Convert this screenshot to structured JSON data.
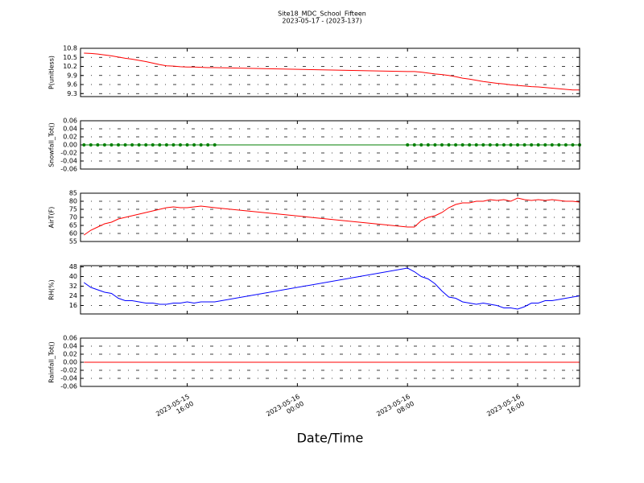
{
  "chart_data": {
    "type": "line",
    "title": "Site18_MDC_School_Fifteen",
    "subtitle": "2023-05-17 - (2023-137)",
    "x_label": "Date/Time",
    "grid": true,
    "xlim": [
      "2023-05-15 08:15",
      "2023-05-16 20:30"
    ],
    "xticks": [
      {
        "value": "2023-05-15 16:00",
        "label": "2023-05-15\n16:00"
      },
      {
        "value": "2023-05-16 00:00",
        "label": "2023-05-16\n00:00"
      },
      {
        "value": "2023-05-16 08:00",
        "label": "2023-05-16\n08:00"
      },
      {
        "value": "2023-05-16 16:00",
        "label": "2023-05-16\n16:00"
      }
    ],
    "x": [
      "2023-05-15 08:30",
      "2023-05-15 09:00",
      "2023-05-15 09:30",
      "2023-05-15 10:00",
      "2023-05-15 10:30",
      "2023-05-15 11:00",
      "2023-05-15 11:30",
      "2023-05-15 12:00",
      "2023-05-15 12:30",
      "2023-05-15 13:00",
      "2023-05-15 13:30",
      "2023-05-15 14:00",
      "2023-05-15 14:30",
      "2023-05-15 15:00",
      "2023-05-15 15:30",
      "2023-05-15 16:00",
      "2023-05-15 16:30",
      "2023-05-15 17:00",
      "2023-05-15 17:30",
      "2023-05-15 18:00",
      "2023-05-16 08:00",
      "2023-05-16 08:30",
      "2023-05-16 09:00",
      "2023-05-16 09:30",
      "2023-05-16 10:00",
      "2023-05-16 10:30",
      "2023-05-16 11:00",
      "2023-05-16 11:30",
      "2023-05-16 12:00",
      "2023-05-16 12:30",
      "2023-05-16 13:00",
      "2023-05-16 13:30",
      "2023-05-16 14:00",
      "2023-05-16 14:30",
      "2023-05-16 15:00",
      "2023-05-16 15:30",
      "2023-05-16 16:00",
      "2023-05-16 16:30",
      "2023-05-16 17:00",
      "2023-05-16 17:30",
      "2023-05-16 18:00",
      "2023-05-16 18:30",
      "2023-05-16 19:00",
      "2023-05-16 19:30",
      "2023-05-16 20:00",
      "2023-05-16 20:30"
    ],
    "panels": [
      {
        "y_label": "P(unitless)",
        "ylim": [
          9.2,
          10.8
        ],
        "yticks": [
          9.3,
          9.6,
          9.9,
          10.2,
          10.5,
          10.8
        ],
        "series": [
          {
            "color": "#ff0000",
            "markers": false,
            "values": [
              10.64,
              10.63,
              10.61,
              10.58,
              10.55,
              10.51,
              10.47,
              10.44,
              10.4,
              10.36,
              10.31,
              10.26,
              10.22,
              10.21,
              10.19,
              10.18,
              10.18,
              10.17,
              10.16,
              10.16,
              10.03,
              10.03,
              10.01,
              9.98,
              9.95,
              9.93,
              9.9,
              9.86,
              9.81,
              9.78,
              9.74,
              9.7,
              9.67,
              9.64,
              9.62,
              9.59,
              9.57,
              9.55,
              9.53,
              9.52,
              9.5,
              9.48,
              9.46,
              9.44,
              9.42,
              9.42
            ]
          }
        ]
      },
      {
        "y_label": "Snowfall_Tot()",
        "ylim": [
          -0.06,
          0.06
        ],
        "yticks": [
          -0.06,
          -0.04,
          -0.02,
          {
            "value": 0,
            "label": "0.00"
          },
          0.02,
          0.04,
          0.06
        ],
        "series": [
          {
            "color": "#007f00",
            "markers": true,
            "values": [
              0,
              0,
              0,
              0,
              0,
              0,
              0,
              0,
              0,
              0,
              0,
              0,
              0,
              0,
              0,
              0,
              0,
              0,
              0,
              0,
              0,
              0,
              0,
              0,
              0,
              0,
              0,
              0,
              0,
              0,
              0,
              0,
              0,
              0,
              0,
              0,
              0,
              0,
              0,
              0,
              0,
              0,
              0,
              0,
              0,
              0
            ]
          }
        ]
      },
      {
        "y_label": "AirT(F)",
        "ylim": [
          55,
          85
        ],
        "yticks": [
          55,
          60,
          65,
          70,
          75,
          80,
          85
        ],
        "series": [
          {
            "color": "#ff0000",
            "markers": false,
            "values": [
              59,
              62,
              64,
              66,
              67,
              69,
              70,
              71,
              72,
              73,
              74,
              75,
              76,
              76.5,
              76,
              76,
              76.5,
              77,
              76.5,
              76,
              64,
              64,
              68,
              70,
              71,
              73,
              76,
              78,
              79,
              79,
              80,
              80,
              81,
              80.5,
              81,
              80,
              82,
              81,
              80.5,
              81,
              80.5,
              81,
              80.5,
              80,
              80,
              79.5
            ]
          }
        ]
      },
      {
        "y_label": "RH(%)",
        "ylim": [
          9,
          49
        ],
        "yticks": [
          16,
          24,
          32,
          40,
          48
        ],
        "series": [
          {
            "color": "#0000ff",
            "markers": false,
            "values": [
              35,
              31,
              29,
              27,
              26,
              22,
              20,
              20,
              19,
              18,
              18,
              17,
              17,
              18,
              18,
              19,
              18,
              19,
              19,
              19,
              47,
              44,
              40,
              38,
              34,
              28,
              23,
              22,
              19,
              18,
              17,
              18,
              17,
              16,
              14,
              14,
              13,
              15,
              18,
              18,
              20,
              20,
              21,
              22,
              23,
              24
            ]
          }
        ]
      },
      {
        "y_label": "Rainfall_Tot()",
        "ylim": [
          -0.06,
          0.06
        ],
        "yticks": [
          -0.06,
          -0.04,
          -0.02,
          {
            "value": 0,
            "label": "0.00"
          },
          0.02,
          0.04,
          0.06
        ],
        "series": [
          {
            "color": "#ff0000",
            "markers": false,
            "values": [
              0,
              0,
              0,
              0,
              0,
              0,
              0,
              0,
              0,
              0,
              0,
              0,
              0,
              0,
              0,
              0,
              0,
              0,
              0,
              0,
              0,
              0,
              0,
              0,
              0,
              0,
              0,
              0,
              0,
              0,
              0,
              0,
              0,
              0,
              0,
              0,
              0,
              0,
              0,
              0,
              0,
              0,
              0,
              0,
              0,
              0
            ]
          }
        ]
      }
    ]
  }
}
